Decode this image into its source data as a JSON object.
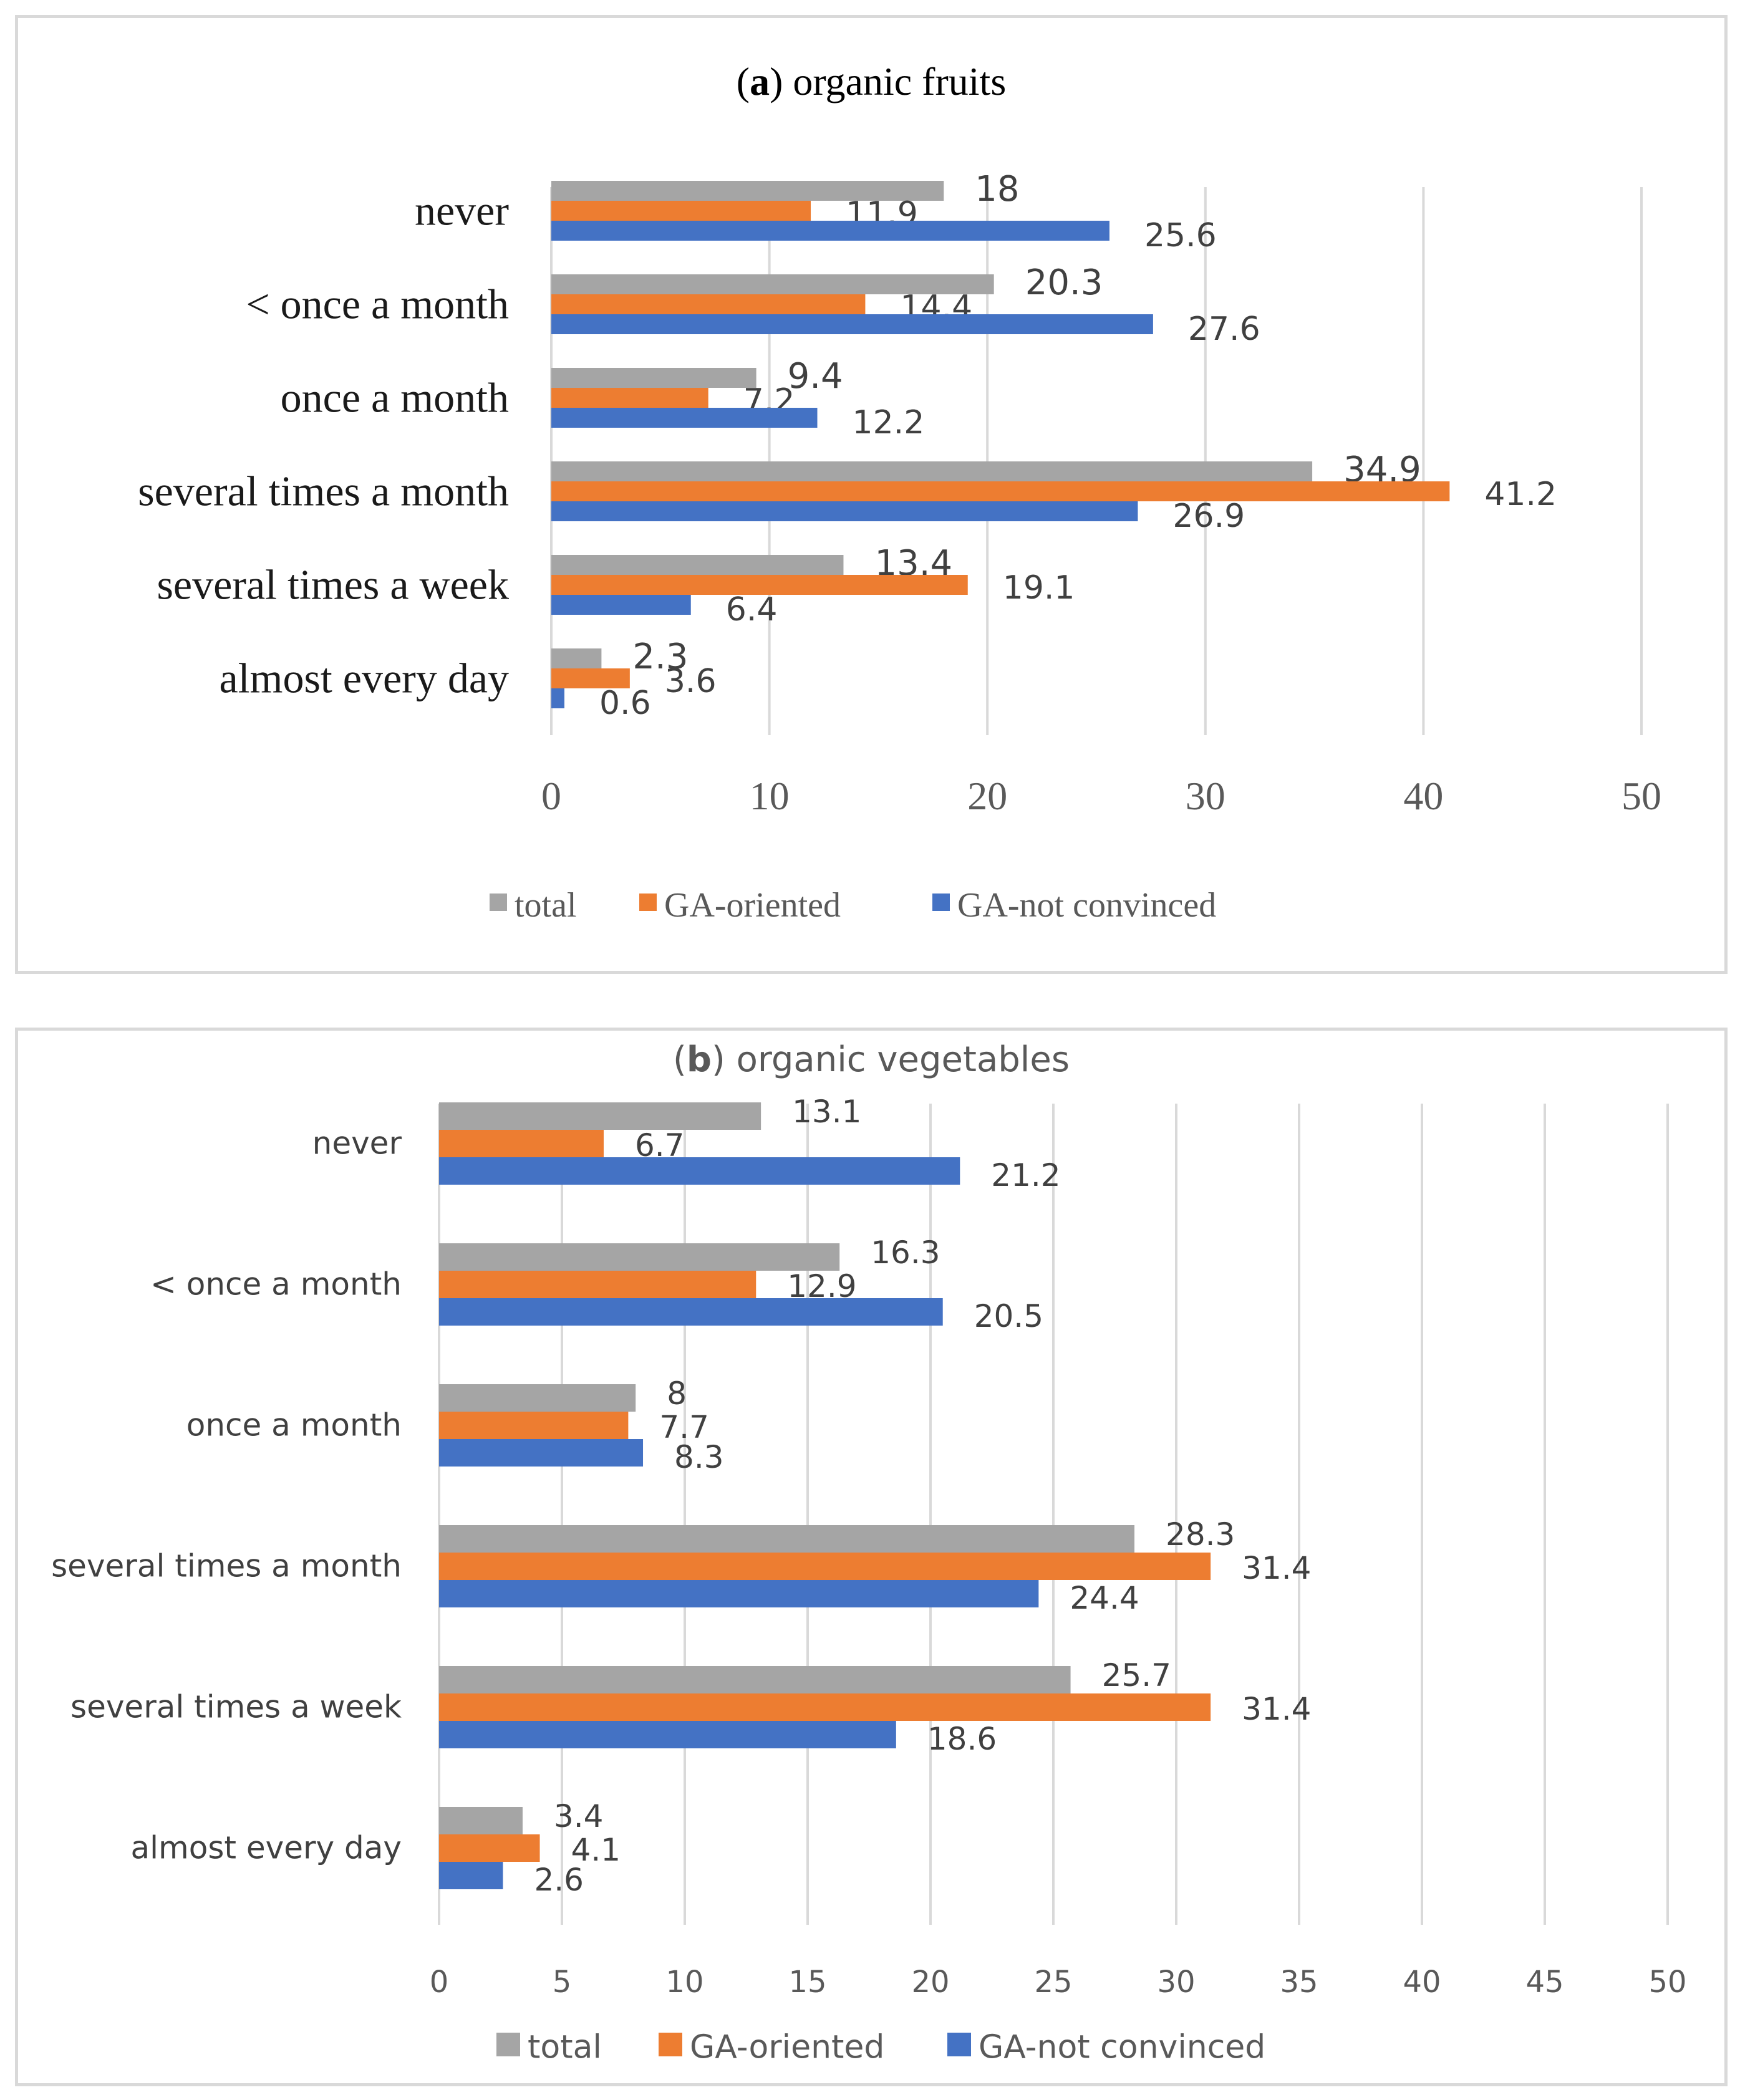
{
  "legend_colors": {
    "total": "#a5a5a5",
    "GA-oriented": "#ed7d31",
    "GA-not convinced": "#4472c4"
  },
  "chart_data": [
    {
      "type": "bar",
      "orientation": "horizontal",
      "title_prefix": "a",
      "title": "organic fruits",
      "categories": [
        "never",
        "< once a month",
        "once a month",
        "several times a month",
        "several times a week",
        "almost every day"
      ],
      "series": [
        {
          "name": "total",
          "values": [
            18,
            20.3,
            9.4,
            34.9,
            13.4,
            2.3
          ]
        },
        {
          "name": "GA-oriented",
          "values": [
            11.9,
            14.4,
            7.2,
            41.2,
            19.1,
            3.6
          ]
        },
        {
          "name": "GA-not convinced",
          "values": [
            25.6,
            27.6,
            12.2,
            26.9,
            6.4,
            0.6
          ]
        }
      ],
      "xlim": [
        0,
        50
      ],
      "xticks": [
        "0",
        "10",
        "20",
        "30",
        "40",
        "50"
      ],
      "grid": true,
      "legend": "bottom"
    },
    {
      "type": "bar",
      "orientation": "horizontal",
      "title_prefix": "b",
      "title": "organic vegetables",
      "categories": [
        "never",
        "< once a month",
        "once a month",
        "several times a month",
        "several times a week",
        "almost every day"
      ],
      "series": [
        {
          "name": "total",
          "values": [
            13.1,
            16.3,
            8,
            28.3,
            25.7,
            3.4
          ]
        },
        {
          "name": "GA-oriented",
          "values": [
            6.7,
            12.9,
            7.7,
            31.4,
            31.4,
            4.1
          ]
        },
        {
          "name": "GA-not convinced",
          "values": [
            21.2,
            20.5,
            8.3,
            24.4,
            18.6,
            2.6
          ]
        }
      ],
      "xlim": [
        0,
        50
      ],
      "xticks": [
        "0",
        "5",
        "10",
        "15",
        "20",
        "25",
        "30",
        "35",
        "40",
        "45",
        "50"
      ],
      "grid": true,
      "legend": "bottom"
    }
  ]
}
